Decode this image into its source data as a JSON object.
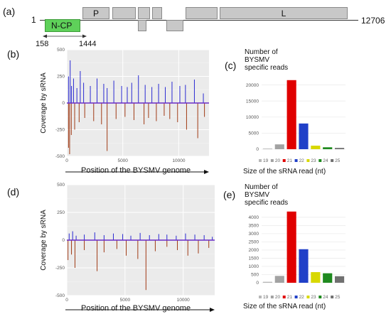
{
  "panels": {
    "a": "(a)",
    "b": "(b)",
    "c": "(c)",
    "d": "(d)",
    "e": "(e)"
  },
  "genome": {
    "start": "1",
    "end": "12706",
    "genes": {
      "ncp": "N-CP",
      "p": "P",
      "l": "L"
    },
    "positions": {
      "left": "158",
      "right": "1444"
    }
  },
  "coverage_labels": {
    "b": {
      "ylabel": "Coverage by sRNA",
      "xlabel": "Position of the BYSMV genome"
    },
    "d": {
      "ylabel": "Coverage by sRNA",
      "xlabel": "Position of the BYSMV genome"
    }
  },
  "bar_labels": {
    "c": {
      "title_lines": [
        "Number of",
        "BYSMV",
        "specific reads"
      ],
      "xlabel": "Size of the sRNA read (nt)"
    },
    "e": {
      "title_lines": [
        "Number of",
        "BYSMV",
        "specific reads"
      ],
      "xlabel": "Size of the sRNA read (nt)"
    }
  },
  "colors": {
    "19": "#b8b8b8",
    "20": "#a2a2a2",
    "21": "#e00000",
    "22": "#2040c8",
    "23": "#d8d800",
    "24": "#1f8a1f",
    "25": "#707070",
    "positive": "#2a2ad2",
    "negative": "#a03a14"
  },
  "chart_data": [
    {
      "panel": "b",
      "type": "bar",
      "xlim": [
        0,
        12706
      ],
      "ylim": [
        -500,
        500
      ],
      "xticks": [
        "0",
        "5000",
        "10000"
      ],
      "yticks": [
        "500",
        "250",
        "0",
        "-250",
        "-500"
      ],
      "series": [
        {
          "name": "",
          "x": [
            150,
            300,
            420,
            600,
            900,
            1200,
            1500,
            2100,
            2700,
            3300,
            3600,
            4200,
            4900,
            5400,
            5800,
            6400,
            7000,
            7600,
            8200,
            8800,
            9400,
            10100,
            10600,
            11400,
            12200
          ],
          "values": [
            250,
            400,
            160,
            230,
            140,
            300,
            190,
            160,
            230,
            180,
            140,
            210,
            160,
            150,
            190,
            260,
            170,
            150,
            180,
            150,
            200,
            160,
            170,
            220,
            90
          ]
        },
        {
          "name": "",
          "x": [
            150,
            250,
            400,
            700,
            1100,
            1600,
            2400,
            3100,
            3600,
            4400,
            5200,
            6000,
            6900,
            7300,
            8000,
            8700,
            9200,
            9900,
            10700,
            11700,
            12300
          ],
          "values": [
            -420,
            -480,
            -300,
            -250,
            -180,
            -140,
            -170,
            -200,
            -450,
            -150,
            -130,
            -160,
            -200,
            -140,
            -170,
            -120,
            -150,
            -180,
            -250,
            -330,
            -130
          ]
        }
      ]
    },
    {
      "panel": "c",
      "type": "bar",
      "categories": [
        "19",
        "20",
        "21",
        "22",
        "23",
        "24",
        "25"
      ],
      "values": [
        200,
        1500,
        21500,
        8000,
        1100,
        600,
        400
      ],
      "ylim": [
        0,
        23000
      ],
      "yticks": [
        "0",
        "5000",
        "10000",
        "15000",
        "20000"
      ],
      "legend": [
        "19",
        "20",
        "21",
        "22",
        "23",
        "24",
        "25"
      ]
    },
    {
      "panel": "d",
      "type": "bar",
      "xlim": [
        0,
        12706
      ],
      "ylim": [
        -500,
        500
      ],
      "xticks": [
        "0",
        "5000",
        "10000"
      ],
      "yticks": [
        "500",
        "250",
        "0",
        "-250",
        "-500"
      ],
      "series": [
        {
          "name": "",
          "x": [
            200,
            500,
            800,
            1500,
            2400,
            3200,
            4000,
            4800,
            5500,
            6300,
            7100,
            7900,
            8600,
            9400,
            10200,
            11000,
            11800,
            12500
          ],
          "values": [
            60,
            80,
            40,
            50,
            70,
            45,
            60,
            55,
            40,
            65,
            45,
            55,
            50,
            40,
            60,
            50,
            45,
            30
          ]
        },
        {
          "name": "",
          "x": [
            100,
            400,
            700,
            1500,
            2600,
            3200,
            4300,
            5100,
            6100,
            6800,
            7600,
            8600,
            9500,
            10400,
            11300,
            12200
          ],
          "values": [
            -180,
            -130,
            -250,
            -90,
            -280,
            -110,
            -80,
            -140,
            -170,
            -450,
            -100,
            -60,
            -90,
            -140,
            -120,
            -70
          ]
        }
      ]
    },
    {
      "panel": "e",
      "type": "bar",
      "categories": [
        "19",
        "20",
        "21",
        "22",
        "23",
        "24",
        "25"
      ],
      "values": [
        60,
        420,
        4350,
        2050,
        650,
        580,
        400
      ],
      "ylim": [
        0,
        4600
      ],
      "yticks": [
        "0",
        "500",
        "1000",
        "1500",
        "2000",
        "2500",
        "3000",
        "3500",
        "4000"
      ],
      "legend": [
        "19",
        "20",
        "21",
        "22",
        "23",
        "24",
        "25"
      ]
    }
  ]
}
